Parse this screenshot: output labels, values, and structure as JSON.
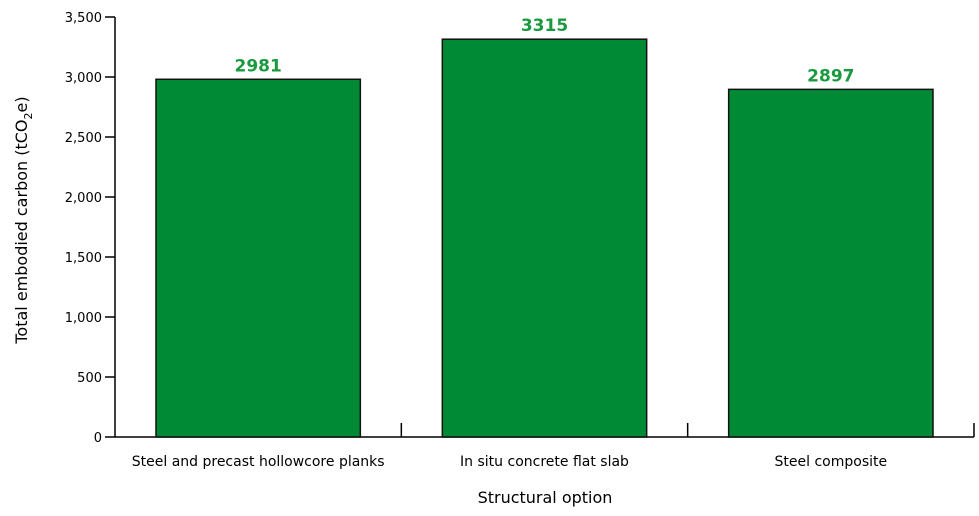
{
  "chart_data": {
    "type": "bar",
    "categories": [
      "Steel and precast hollowcore planks",
      "In situ concrete flat slab",
      "Steel composite"
    ],
    "values": [
      2981,
      3315,
      2897
    ],
    "data_labels": [
      "2981",
      "3315",
      "2897"
    ],
    "xlabel": "Structural option",
    "ylabel": {
      "main": "Total embodied carbon (tCO",
      "subscript": "2",
      "suffix": "e)"
    },
    "ylim": [
      0,
      3500
    ],
    "yticks": [
      0,
      500,
      1000,
      1500,
      2000,
      2500,
      3000,
      3500
    ],
    "ytick_labels": [
      "0",
      "500",
      "1,000",
      "1,500",
      "2,000",
      "2,500",
      "3,000",
      "3,500"
    ],
    "grid": false,
    "legend": "none",
    "colors": {
      "bar_fill": "#008a35",
      "bar_stroke": "#111111",
      "data_label": "#1a9a3f",
      "axis": "#000000"
    }
  }
}
